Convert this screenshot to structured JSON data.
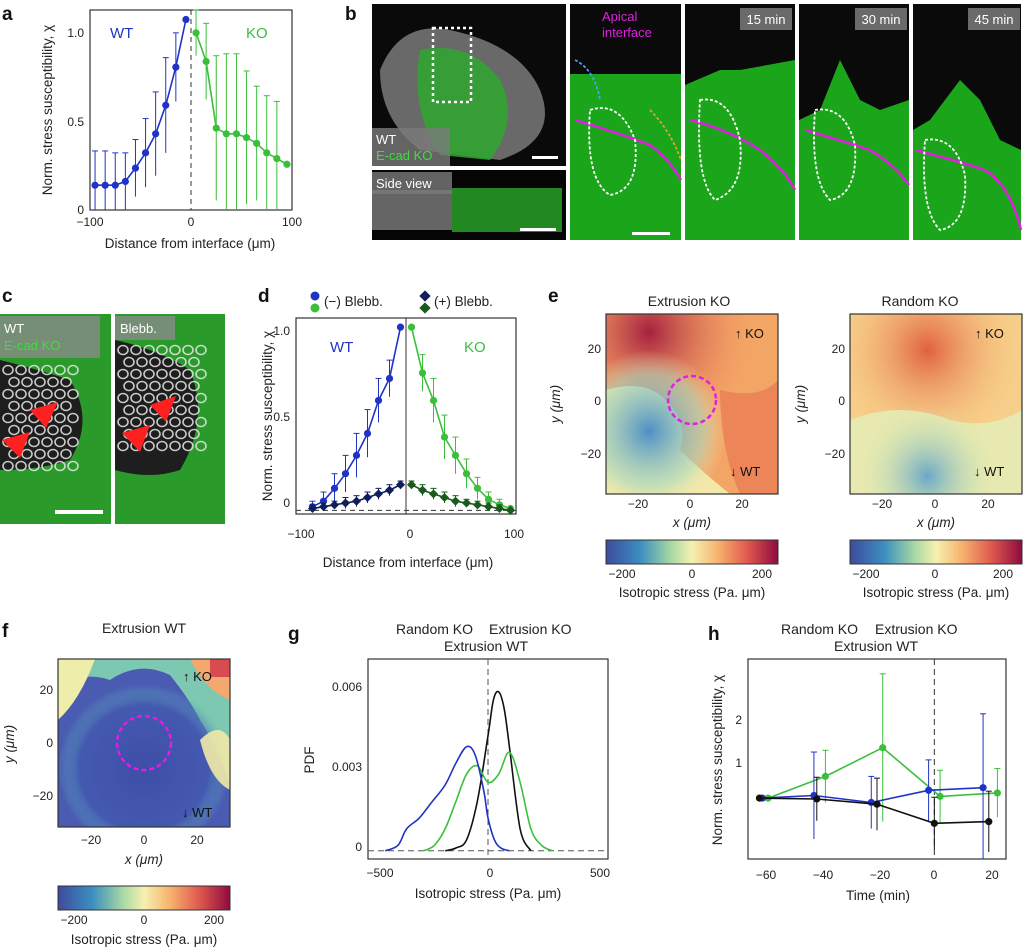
{
  "colors": {
    "wt": "#1f33c7",
    "ko": "#3bbf3b",
    "wt_plus": "#0e1f5c",
    "ko_plus": "#1a5a1a",
    "random": "#111111",
    "magenta": "#e01fe0"
  },
  "panels": {
    "a": {
      "label": "a",
      "ylabel": "Norm. stress susceptibility, χ",
      "xlabel": "Distance from interface (μm)",
      "wt_label": "WT",
      "ko_label": "KO",
      "xticks": [
        "−100",
        "0",
        "100"
      ],
      "yticks": [
        "0",
        "0.5",
        "1.0"
      ]
    },
    "b": {
      "label": "b",
      "wt_caption": "WT",
      "ko_caption": "E-cad KO",
      "side_view": "Side view",
      "apical": "Apical interface",
      "t1": "15 min",
      "t2": "30 min",
      "t3": "45 min"
    },
    "c": {
      "label": "c",
      "wt_caption": "WT",
      "ko_caption": "E-cad KO",
      "blebb": "Blebb."
    },
    "d": {
      "label": "d",
      "ylabel": "Norm. stress susceptibility, χ",
      "xlabel": "Distance from interface (μm)",
      "legend_minus": "(−) Blebb.",
      "legend_plus": "(+) Blebb.",
      "wt_label": "WT",
      "ko_label": "KO",
      "xticks": [
        "−100",
        "0",
        "100"
      ],
      "yticks": [
        "0",
        "0.5",
        "1.0"
      ]
    },
    "e": {
      "label": "e",
      "title1": "Extrusion KO",
      "title2": "Random KO",
      "ko_tag": "↑ KO",
      "wt_tag": "↓ WT",
      "xlabel": "x (μm)",
      "ylabel": "y (μm)",
      "xticks": [
        "−20",
        "0",
        "20"
      ],
      "yticks": [
        "20",
        "0",
        "−20"
      ],
      "cbar_label": "Isotropic stress (Pa. μm)",
      "cbar_ticks": [
        "−200",
        "0",
        "200"
      ]
    },
    "f": {
      "label": "f",
      "title": "Extrusion WT",
      "ko_tag": "↑ KO",
      "wt_tag": "↓ WT",
      "xlabel": "x (μm)",
      "ylabel": "y (μm)",
      "xticks": [
        "−20",
        "0",
        "20"
      ],
      "yticks": [
        "20",
        "0",
        "−20"
      ],
      "cbar_label": "Isotropic stress (Pa. μm)",
      "cbar_ticks": [
        "−200",
        "0",
        "200"
      ]
    },
    "g": {
      "label": "g",
      "legend_random": "Random KO",
      "legend_ext_ko": "Extrusion KO",
      "legend_ext_wt": "Extrusion WT",
      "ylabel": "PDF",
      "xlabel": "Isotropic stress (Pa. μm)",
      "xticks": [
        "−500",
        "0",
        "500"
      ],
      "yticks": [
        "0",
        "0.003",
        "0.006"
      ]
    },
    "h": {
      "label": "h",
      "legend_random": "Random KO",
      "legend_ext_ko": "Extrusion KO",
      "legend_ext_wt": "Extrusion WT",
      "ylabel": "Norm. stress susceptibility, χ",
      "xlabel": "Time (min)",
      "xticks": [
        "−60",
        "−40",
        "−20",
        "0",
        "20"
      ],
      "yticks": [
        "1",
        "2"
      ]
    }
  },
  "chart_data": [
    {
      "panel": "a",
      "type": "line",
      "xlim": [
        -100,
        100
      ],
      "ylim": [
        0,
        1.05
      ],
      "series": [
        {
          "name": "WT",
          "x": [
            -95,
            -85,
            -75,
            -65,
            -55,
            -45,
            -35,
            -25,
            -15,
            -5
          ],
          "y": [
            0.13,
            0.13,
            0.13,
            0.15,
            0.22,
            0.3,
            0.4,
            0.55,
            0.75,
            1.0
          ],
          "err": [
            0.18,
            0.18,
            0.17,
            0.15,
            0.15,
            0.18,
            0.22,
            0.25,
            0.18,
            0
          ]
        },
        {
          "name": "KO",
          "x": [
            5,
            15,
            25,
            35,
            45,
            55,
            65,
            75,
            85,
            95
          ],
          "y": [
            0.93,
            0.78,
            0.43,
            0.4,
            0.4,
            0.38,
            0.35,
            0.3,
            0.27,
            0.24
          ],
          "err": [
            0.12,
            0.2,
            0.38,
            0.42,
            0.42,
            0.35,
            0.3,
            0.3,
            0.3,
            0
          ]
        }
      ]
    },
    {
      "panel": "d",
      "type": "line",
      "xlim": [
        -100,
        100
      ],
      "ylim": [
        -0.02,
        1.05
      ],
      "series": [
        {
          "name": "(−) Blebb. WT",
          "x": [
            -85,
            -75,
            -65,
            -55,
            -45,
            -35,
            -25,
            -15,
            -5
          ],
          "y": [
            0.02,
            0.05,
            0.12,
            0.2,
            0.3,
            0.42,
            0.6,
            0.72,
            1.0
          ],
          "err": [
            0.03,
            0.05,
            0.08,
            0.1,
            0.12,
            0.13,
            0.12,
            0.1,
            0
          ]
        },
        {
          "name": "(−) Blebb. KO",
          "x": [
            5,
            15,
            25,
            35,
            45,
            55,
            65,
            75,
            85,
            95
          ],
          "y": [
            1.0,
            0.75,
            0.6,
            0.4,
            0.3,
            0.2,
            0.12,
            0.06,
            0.03,
            0.01
          ],
          "err": [
            0,
            0.1,
            0.12,
            0.12,
            0.1,
            0.08,
            0.06,
            0.04,
            0.03,
            0
          ]
        },
        {
          "name": "(+) Blebb. WT",
          "x": [
            -85,
            -75,
            -65,
            -55,
            -45,
            -35,
            -25,
            -15,
            -5
          ],
          "y": [
            0.01,
            0.02,
            0.03,
            0.04,
            0.05,
            0.07,
            0.09,
            0.11,
            0.14
          ],
          "err": [
            0.02,
            0.02,
            0.02,
            0.03,
            0.03,
            0.03,
            0.03,
            0.03,
            0.02
          ]
        },
        {
          "name": "(+) Blebb. KO",
          "x": [
            5,
            15,
            25,
            35,
            45,
            55,
            65,
            75,
            85,
            95
          ],
          "y": [
            0.14,
            0.11,
            0.09,
            0.07,
            0.05,
            0.04,
            0.03,
            0.02,
            0.01,
            0.0
          ],
          "err": [
            0.02,
            0.03,
            0.03,
            0.03,
            0.03,
            0.02,
            0.02,
            0.02,
            0.02,
            0
          ]
        }
      ]
    },
    {
      "panel": "g",
      "type": "line",
      "xlim": [
        -560,
        560
      ],
      "ylim": [
        -0.0003,
        0.007
      ],
      "series": [
        {
          "name": "Random KO",
          "x": [
            -200,
            -150,
            -100,
            -50,
            0,
            25,
            50,
            75,
            100,
            150,
            200
          ],
          "y": [
            0,
            0.0001,
            0.0004,
            0.0018,
            0.0042,
            0.0055,
            0.0058,
            0.0052,
            0.0038,
            0.0008,
            0
          ]
        },
        {
          "name": "Extrusion KO",
          "x": [
            -300,
            -250,
            -200,
            -150,
            -100,
            -50,
            0,
            50,
            100,
            150,
            200,
            250,
            300
          ],
          "y": [
            0,
            0.0002,
            0.0008,
            0.0018,
            0.0028,
            0.0031,
            0.0025,
            0.0028,
            0.0036,
            0.0025,
            0.0008,
            0.0002,
            0
          ]
        },
        {
          "name": "Extrusion WT",
          "x": [
            -480,
            -420,
            -380,
            -320,
            -260,
            -200,
            -150,
            -100,
            -60,
            -20,
            0,
            30,
            60,
            100
          ],
          "y": [
            0,
            0.0002,
            0.0008,
            0.0012,
            0.0018,
            0.0024,
            0.0032,
            0.0038,
            0.0035,
            0.0022,
            0.0012,
            0.0004,
            0.0001,
            0
          ]
        }
      ]
    },
    {
      "panel": "h",
      "type": "line",
      "xlim": [
        -65,
        25
      ],
      "ylim": [
        0.3,
        2.6
      ],
      "series": [
        {
          "name": "Random KO",
          "x": [
            -61,
            -41,
            -20,
            0,
            19
          ],
          "y": [
            1.0,
            0.99,
            0.93,
            0.71,
            0.73
          ],
          "err": [
            0,
            0.25,
            0.3,
            0.3,
            0.35
          ]
        },
        {
          "name": "Extrusion KO",
          "x": [
            -58,
            -38,
            -18,
            2,
            22
          ],
          "y": [
            1.0,
            1.25,
            1.58,
            1.02,
            1.06
          ],
          "err": [
            0,
            0.3,
            0.85,
            0.3,
            0.28
          ]
        },
        {
          "name": "Extrusion WT",
          "x": [
            -60,
            -42,
            -22,
            -2,
            17
          ],
          "y": [
            1.0,
            1.03,
            0.95,
            1.09,
            1.12
          ],
          "err": [
            0,
            0.5,
            0.3,
            0.35,
            0.85
          ]
        }
      ]
    },
    {
      "panel": "e1",
      "type": "heatmap",
      "title": "Extrusion KO",
      "xlim": [
        -32,
        32
      ],
      "ylim": [
        -32,
        32
      ],
      "zlim": [
        -250,
        250
      ]
    },
    {
      "panel": "e2",
      "type": "heatmap",
      "title": "Random KO",
      "xlim": [
        -32,
        32
      ],
      "ylim": [
        -32,
        32
      ],
      "zlim": [
        -250,
        250
      ]
    },
    {
      "panel": "f",
      "type": "heatmap",
      "title": "Extrusion WT",
      "xlim": [
        -32,
        32
      ],
      "ylim": [
        -32,
        32
      ],
      "zlim": [
        -250,
        250
      ]
    }
  ]
}
